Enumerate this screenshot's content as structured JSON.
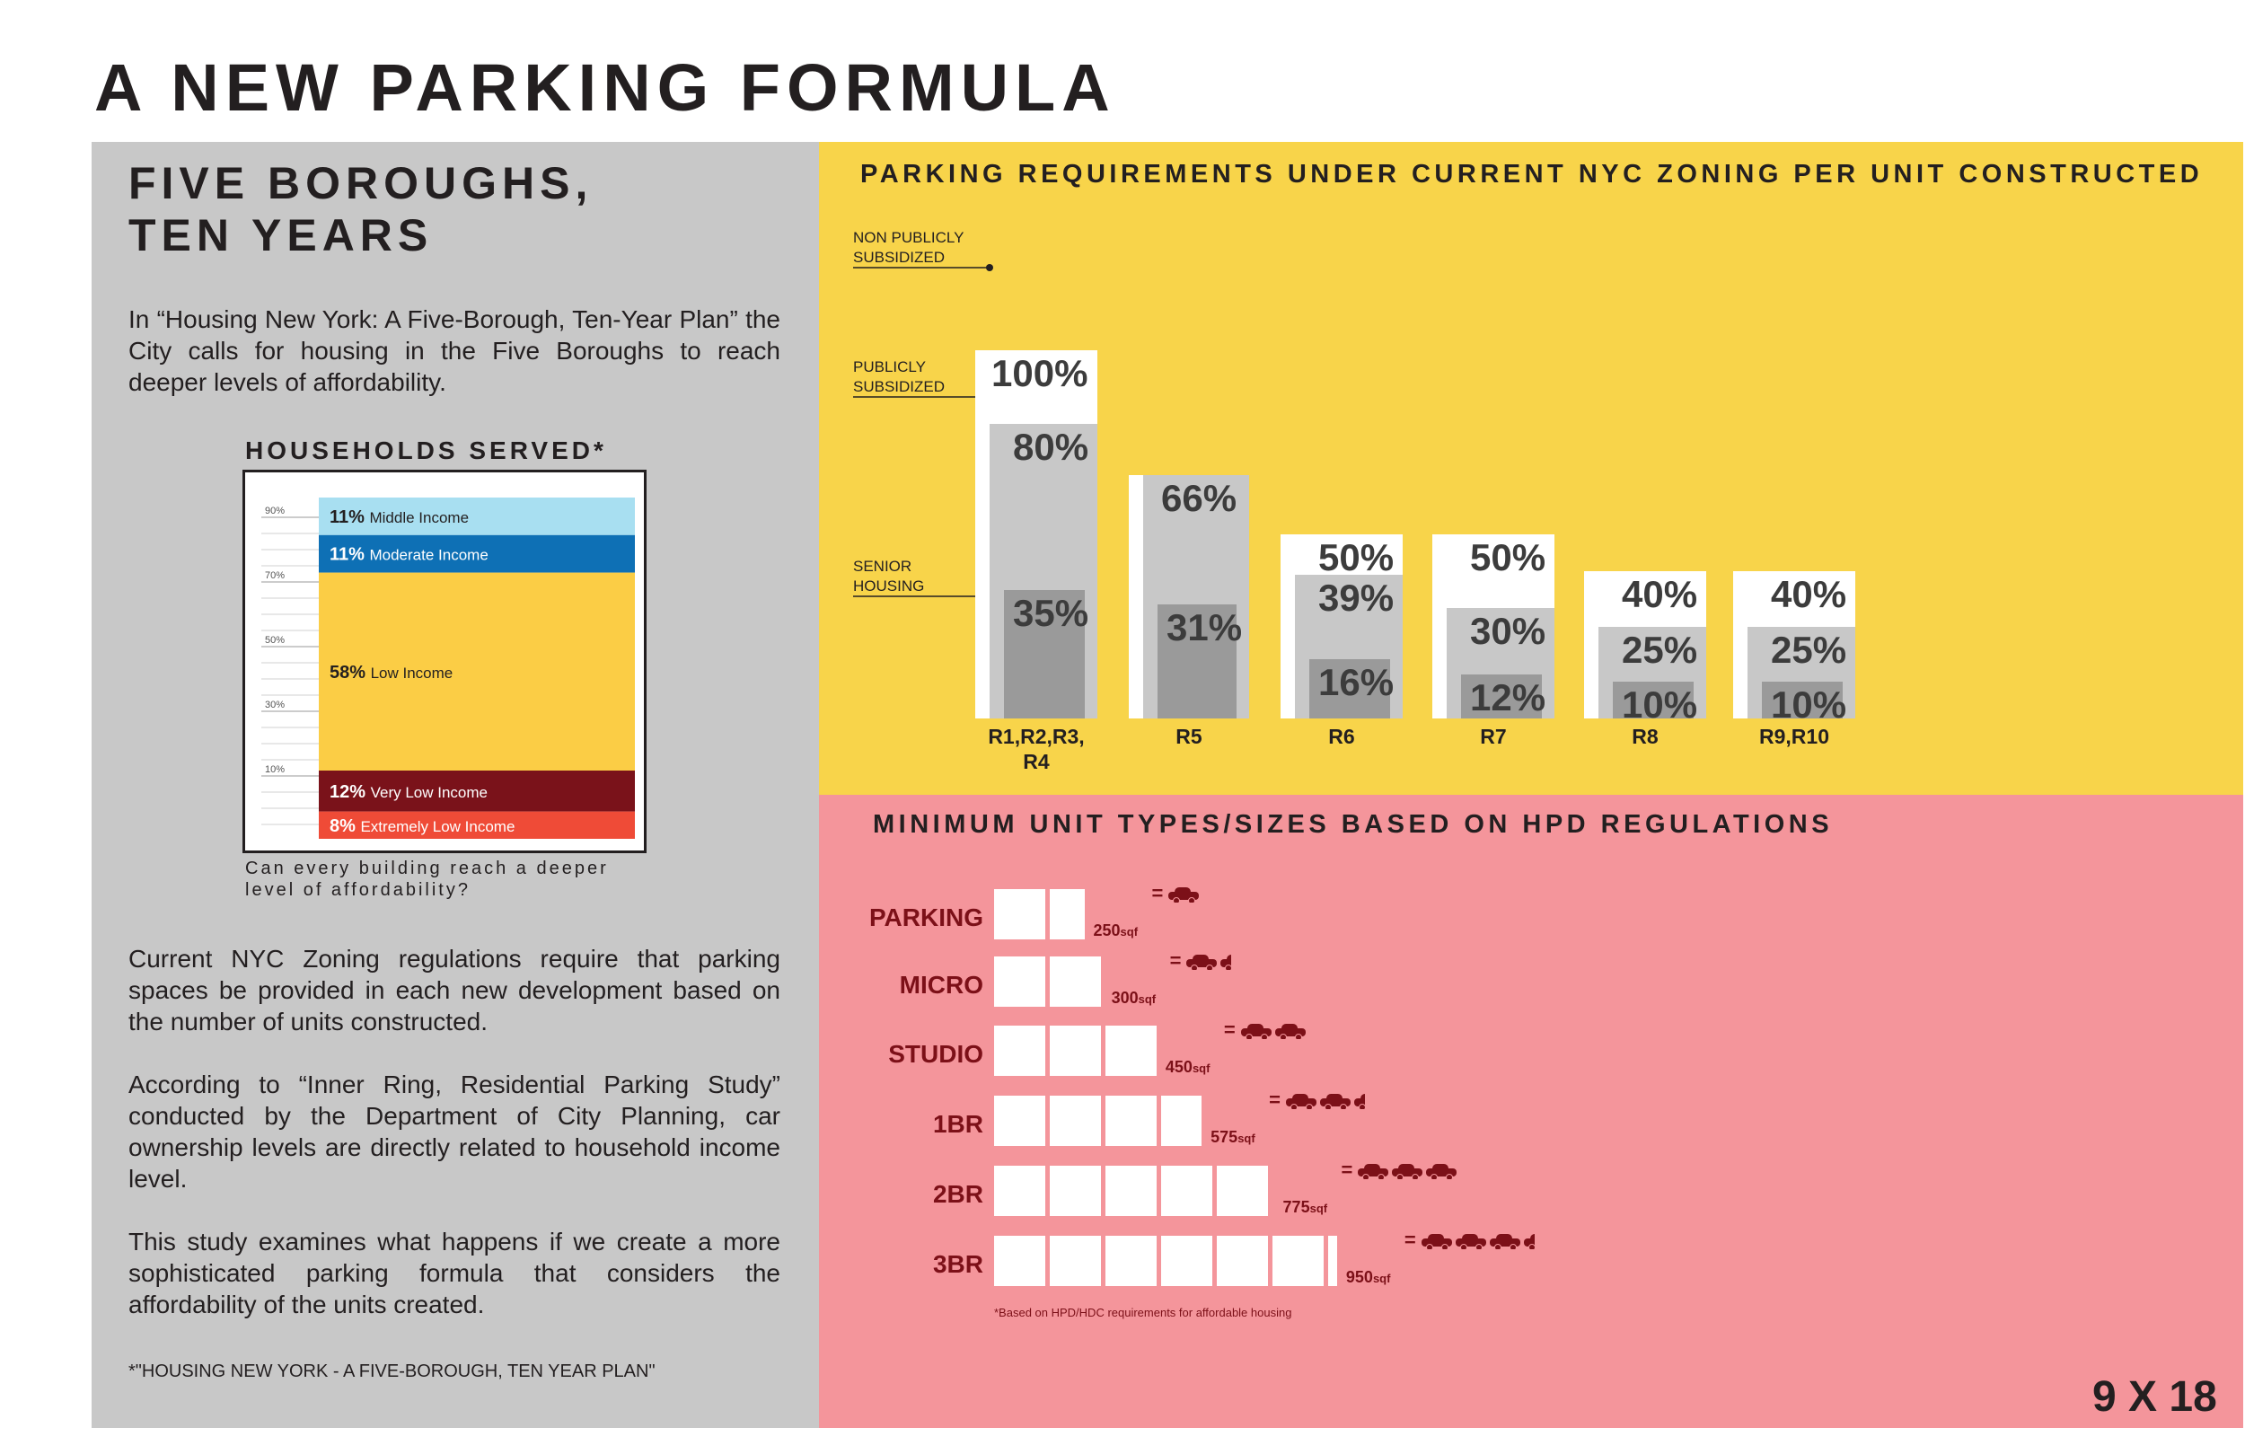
{
  "title": "A NEW PARKING FORMULA",
  "left": {
    "heading_1": "FIVE BOROUGHS,",
    "heading_2": "TEN YEARS",
    "intro": "In “Housing New York: A Five-Borough, Ten-Year Plan” the City calls for housing in the Five Boroughs to reach deeper levels of affordability.",
    "households_title": "HOUSEHOLDS SERVED*",
    "households_caption": "Can every building reach a deeper level of affordability?",
    "para_1": "Current NYC Zoning regulations require that parking spaces be provided in each new development based on the number of units constructed.",
    "para_2": "According to “Inner Ring, Residential Parking Study” conducted by the Department of City Planning, car ownership levels are directly related to household income level.",
    "para_3": "This study examines what happens if we create a more sophisticated parking formula that considers the affordability of the units created.",
    "footnote": "*\"HOUSING NEW YORK - A FIVE-BOROUGH, TEN YEAR PLAN\""
  },
  "parking_title": "PARKING REQUIREMENTS UNDER CURRENT NYC ZONING PER UNIT CONSTRUCTED",
  "callouts": {
    "non_public": "NON PUBLICLY\nSUBSIDIZED",
    "public": "PUBLICLY\nSUBSIDIZED",
    "senior": "SENIOR\nHOUSING"
  },
  "unit_title": "MINIMUM UNIT TYPES/SIZES BASED ON HPD REGULATIONS",
  "unit_footnote": "*Based on HPD/HDC requirements for affordable housing",
  "badge": "9 X 18",
  "colors": {
    "gray_panel": "#c8c8c8",
    "yellow_panel": "#f8d44a",
    "pink_panel": "#f4959b",
    "dark_red": "#7c1018",
    "non_public": "#ffffff",
    "public": "#c8c8c8",
    "senior": "#9a9a9a"
  },
  "chart_data": [
    {
      "type": "bar",
      "title": "HOUSEHOLDS SERVED*",
      "stacked": true,
      "y_ticks": [
        "90%",
        "70%",
        "50%",
        "30%",
        "10%"
      ],
      "segments": [
        {
          "pct_label": "11%",
          "name": "Middle Income",
          "value": 11,
          "color": "#a8dff1",
          "text_color": "#231f20"
        },
        {
          "pct_label": "11%",
          "name": "Moderate Income",
          "value": 11,
          "color": "#0e70b5",
          "text_color": "#ffffff"
        },
        {
          "pct_label": "58%",
          "name": "Low Income",
          "value": 58,
          "color": "#fbcd45",
          "text_color": "#231f20"
        },
        {
          "pct_label": "12%",
          "name": "Very Low Income",
          "value": 12,
          "color": "#7a121a",
          "text_color": "#ffffff"
        },
        {
          "pct_label": "8%",
          "name": "Extremely Low Income",
          "value": 8,
          "color": "#ef4b37",
          "text_color": "#ffffff"
        }
      ]
    },
    {
      "type": "bar",
      "title": "PARKING REQUIREMENTS UNDER CURRENT NYC ZONING PER UNIT CONSTRUCTED",
      "categories": [
        "R1,R2,R3,\nR4",
        "R5",
        "R6",
        "R7",
        "R8",
        "R9,R10"
      ],
      "series": [
        {
          "name": "NON PUBLICLY SUBSIDIZED",
          "values": [
            100,
            66,
            50,
            50,
            40,
            40
          ]
        },
        {
          "name": "PUBLICLY SUBSIDIZED",
          "values": [
            80,
            66,
            39,
            30,
            25,
            25
          ]
        },
        {
          "name": "SENIOR HOUSING",
          "values": [
            35,
            31,
            16,
            12,
            10,
            10
          ]
        }
      ],
      "labels": [
        [
          "100%",
          "80%",
          "35%"
        ],
        [
          "",
          "66%",
          "31%"
        ],
        [
          "50%",
          "39%",
          "16%"
        ],
        [
          "50%",
          "30%",
          "12%"
        ],
        [
          "40%",
          "25%",
          "10%"
        ],
        [
          "40%",
          "25%",
          "10%"
        ]
      ],
      "ylim": [
        0,
        100
      ]
    },
    {
      "type": "bar",
      "title": "MINIMUM UNIT TYPES/SIZES BASED ON HPD REGULATIONS",
      "orientation": "horizontal",
      "categories": [
        "PARKING",
        "MICRO",
        "STUDIO",
        "1BR",
        "2BR",
        "3BR"
      ],
      "values": [
        250,
        300,
        450,
        575,
        775,
        950
      ],
      "value_labels": [
        "250",
        "300",
        "450",
        "575",
        "775",
        "950"
      ],
      "unit": "sqf",
      "cars": [
        1,
        1.5,
        2,
        2.5,
        3,
        3.5
      ]
    }
  ]
}
